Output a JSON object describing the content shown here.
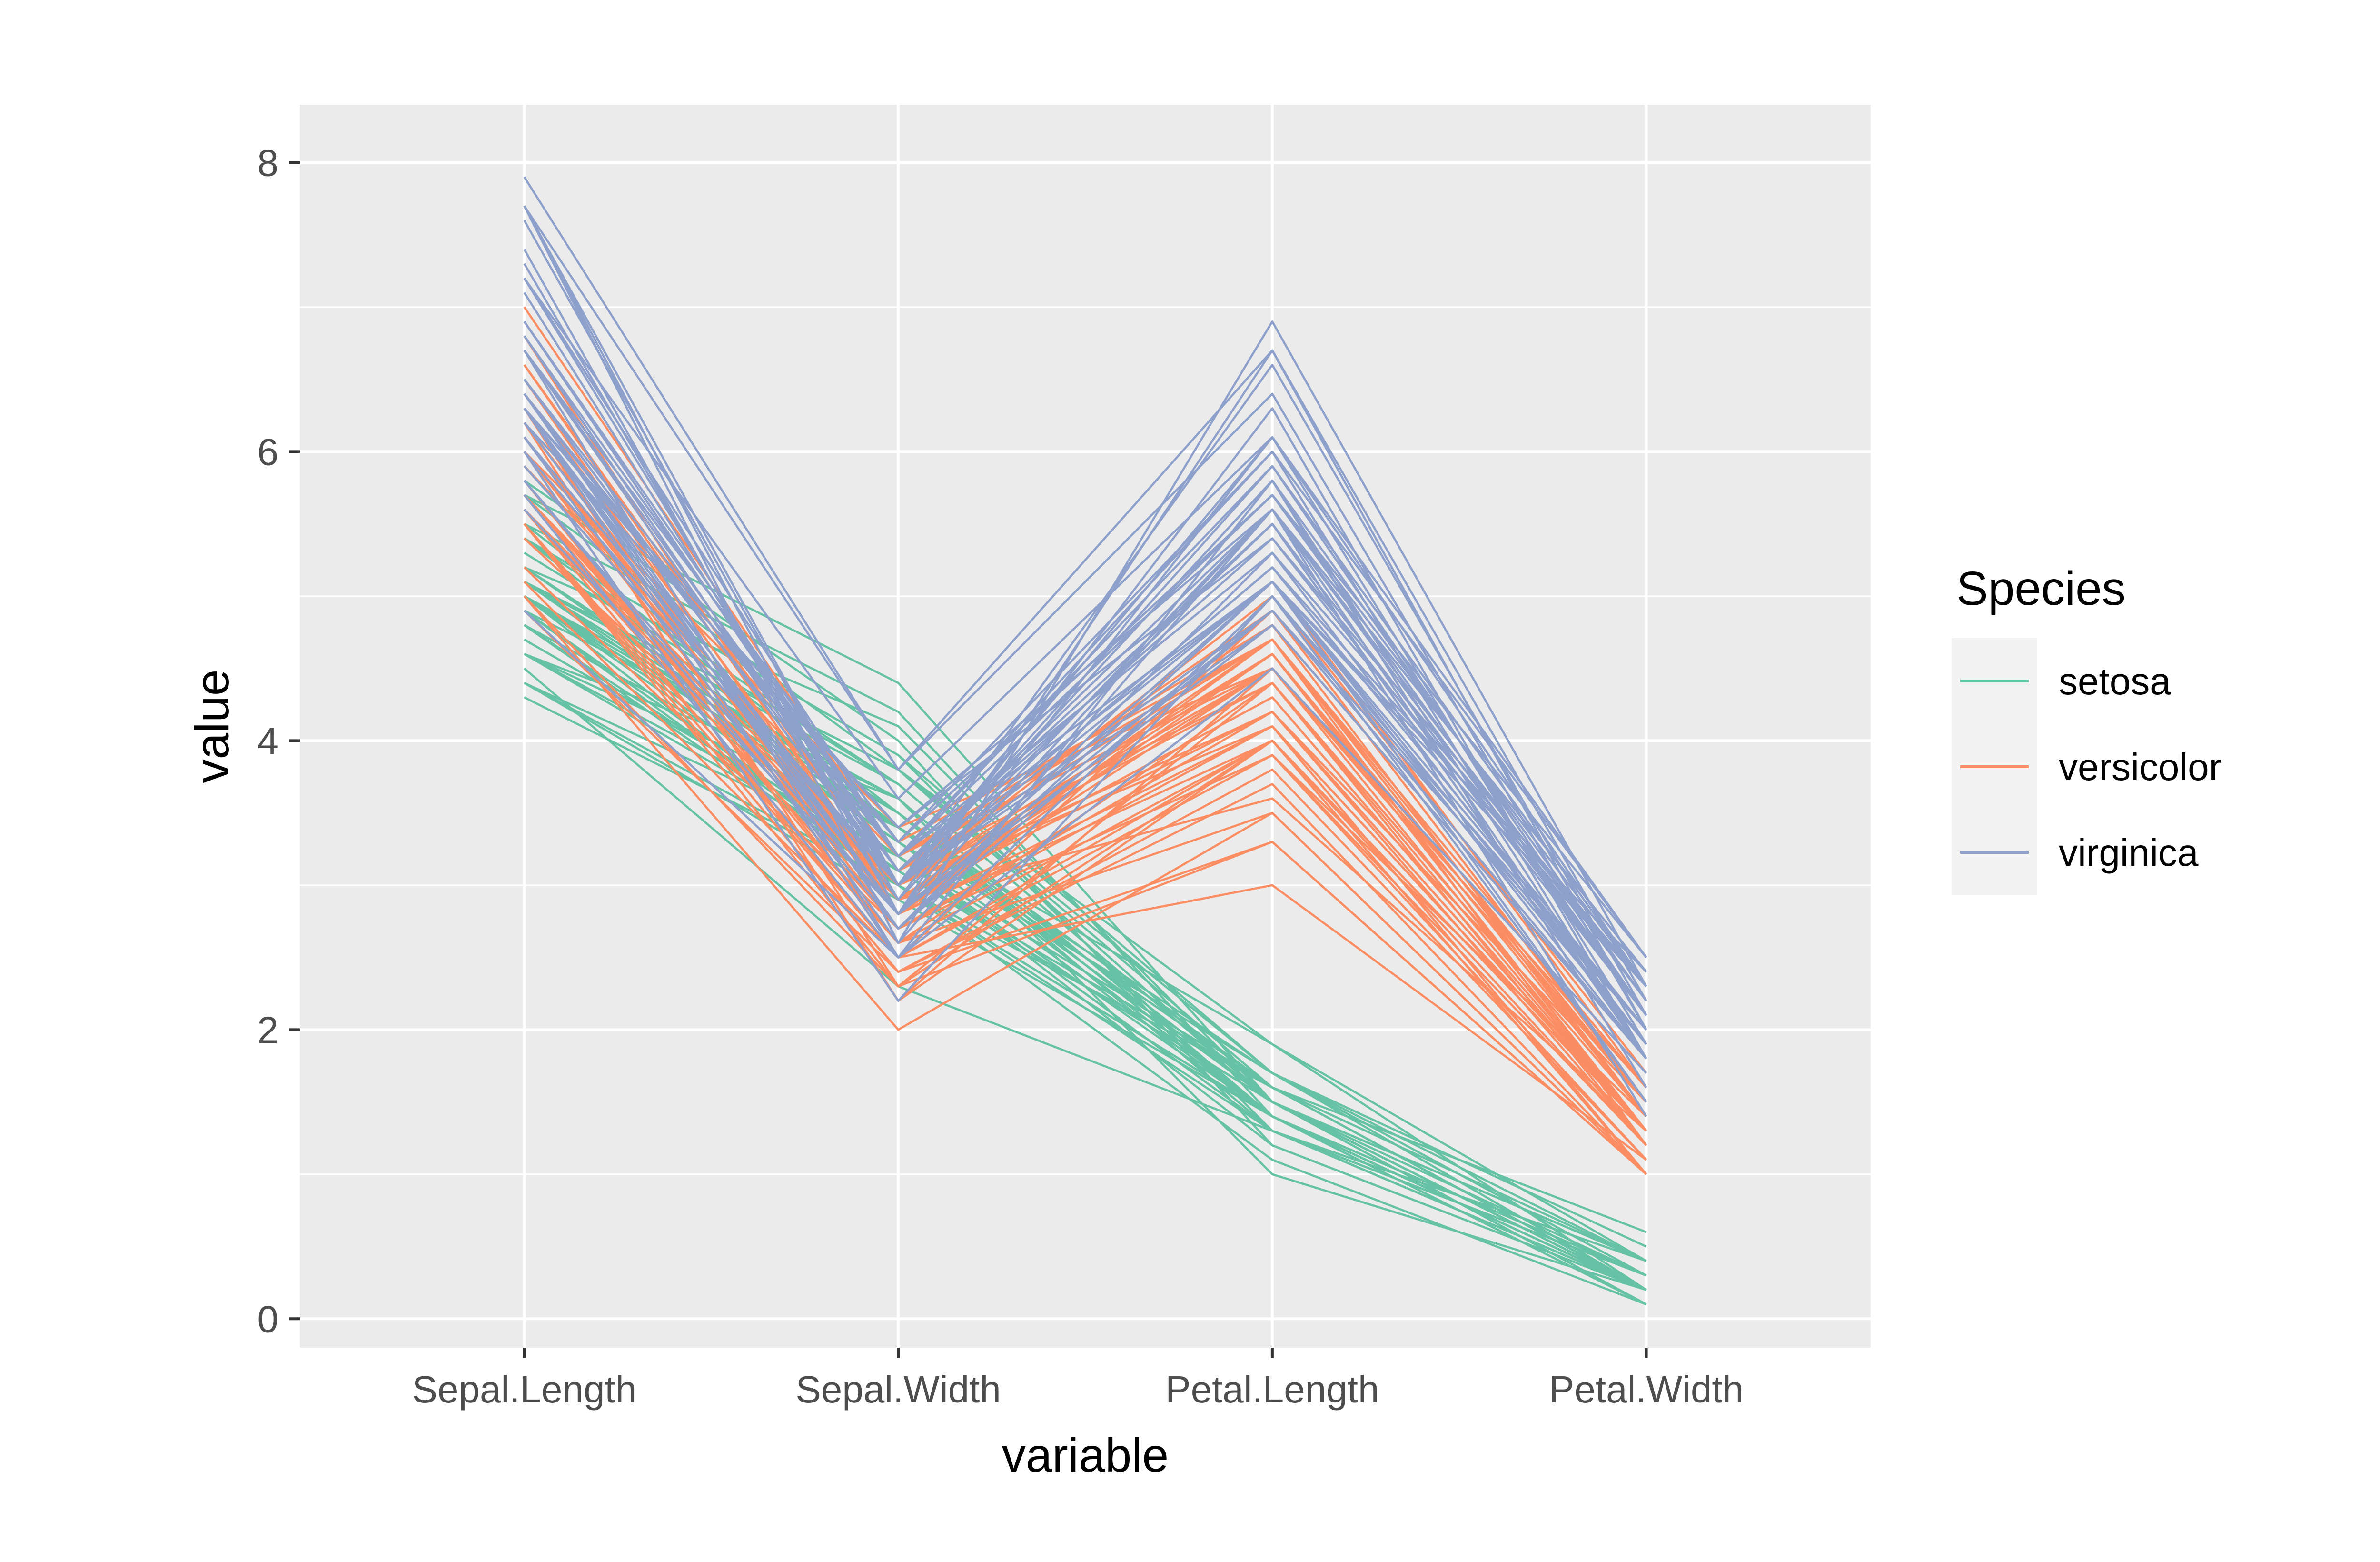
{
  "chart_data": {
    "type": "line",
    "title": "",
    "xlabel": "variable",
    "ylabel": "value",
    "categories": [
      "Sepal.Length",
      "Sepal.Width",
      "Petal.Length",
      "Petal.Width"
    ],
    "ylim": [
      -0.2,
      8.4
    ],
    "y_ticks": [
      0,
      2,
      4,
      6,
      8
    ],
    "grid": true,
    "legend": {
      "title": "Species",
      "position": "right"
    },
    "series_groups": [
      {
        "name": "setosa",
        "color": "#66C2A5",
        "lines": [
          [
            5.1,
            3.5,
            1.4,
            0.2
          ],
          [
            4.9,
            3.0,
            1.4,
            0.2
          ],
          [
            4.7,
            3.2,
            1.3,
            0.2
          ],
          [
            4.6,
            3.1,
            1.5,
            0.2
          ],
          [
            5.0,
            3.6,
            1.4,
            0.2
          ],
          [
            5.4,
            3.9,
            1.7,
            0.4
          ],
          [
            4.6,
            3.4,
            1.4,
            0.3
          ],
          [
            5.0,
            3.4,
            1.5,
            0.2
          ],
          [
            4.4,
            2.9,
            1.4,
            0.2
          ],
          [
            4.9,
            3.1,
            1.5,
            0.1
          ],
          [
            5.4,
            3.7,
            1.5,
            0.2
          ],
          [
            4.8,
            3.4,
            1.6,
            0.2
          ],
          [
            4.8,
            3.0,
            1.4,
            0.1
          ],
          [
            4.3,
            3.0,
            1.1,
            0.1
          ],
          [
            5.8,
            4.0,
            1.2,
            0.2
          ],
          [
            5.7,
            4.4,
            1.5,
            0.4
          ],
          [
            5.4,
            3.9,
            1.3,
            0.4
          ],
          [
            5.1,
            3.5,
            1.4,
            0.3
          ],
          [
            5.7,
            3.8,
            1.7,
            0.3
          ],
          [
            5.1,
            3.8,
            1.5,
            0.3
          ],
          [
            5.4,
            3.4,
            1.7,
            0.2
          ],
          [
            5.1,
            3.7,
            1.5,
            0.4
          ],
          [
            4.6,
            3.6,
            1.0,
            0.2
          ],
          [
            5.1,
            3.3,
            1.7,
            0.5
          ],
          [
            4.8,
            3.4,
            1.9,
            0.2
          ],
          [
            5.0,
            3.0,
            1.6,
            0.2
          ],
          [
            5.0,
            3.4,
            1.6,
            0.4
          ],
          [
            5.2,
            3.5,
            1.5,
            0.2
          ],
          [
            5.2,
            3.4,
            1.4,
            0.2
          ],
          [
            4.7,
            3.2,
            1.6,
            0.2
          ],
          [
            4.8,
            3.1,
            1.6,
            0.2
          ],
          [
            5.4,
            3.4,
            1.5,
            0.4
          ],
          [
            5.2,
            4.1,
            1.5,
            0.1
          ],
          [
            5.5,
            4.2,
            1.4,
            0.2
          ],
          [
            4.9,
            3.1,
            1.5,
            0.2
          ],
          [
            5.0,
            3.2,
            1.2,
            0.2
          ],
          [
            5.5,
            3.5,
            1.3,
            0.2
          ],
          [
            4.9,
            3.6,
            1.4,
            0.1
          ],
          [
            4.4,
            3.0,
            1.3,
            0.2
          ],
          [
            5.1,
            3.4,
            1.5,
            0.2
          ],
          [
            5.0,
            3.5,
            1.3,
            0.3
          ],
          [
            4.5,
            2.3,
            1.3,
            0.3
          ],
          [
            4.4,
            3.2,
            1.3,
            0.2
          ],
          [
            5.0,
            3.5,
            1.6,
            0.6
          ],
          [
            5.1,
            3.8,
            1.9,
            0.4
          ],
          [
            4.8,
            3.0,
            1.4,
            0.3
          ],
          [
            5.1,
            3.8,
            1.6,
            0.2
          ],
          [
            4.6,
            3.2,
            1.4,
            0.2
          ],
          [
            5.3,
            3.7,
            1.5,
            0.2
          ],
          [
            5.0,
            3.3,
            1.4,
            0.2
          ]
        ]
      },
      {
        "name": "versicolor",
        "color": "#FC8D62",
        "lines": [
          [
            7.0,
            3.2,
            4.7,
            1.4
          ],
          [
            6.4,
            3.2,
            4.5,
            1.5
          ],
          [
            6.9,
            3.1,
            4.9,
            1.5
          ],
          [
            5.5,
            2.3,
            4.0,
            1.3
          ],
          [
            6.5,
            2.8,
            4.6,
            1.5
          ],
          [
            5.7,
            2.8,
            4.5,
            1.3
          ],
          [
            6.3,
            3.3,
            4.7,
            1.6
          ],
          [
            4.9,
            2.4,
            3.3,
            1.0
          ],
          [
            6.6,
            2.9,
            4.6,
            1.3
          ],
          [
            5.2,
            2.7,
            3.9,
            1.4
          ],
          [
            5.0,
            2.0,
            3.5,
            1.0
          ],
          [
            5.9,
            3.0,
            4.2,
            1.5
          ],
          [
            6.0,
            2.2,
            4.0,
            1.0
          ],
          [
            6.1,
            2.9,
            4.7,
            1.4
          ],
          [
            5.6,
            2.9,
            3.6,
            1.3
          ],
          [
            6.7,
            3.1,
            4.4,
            1.4
          ],
          [
            5.6,
            3.0,
            4.5,
            1.5
          ],
          [
            5.8,
            2.7,
            4.1,
            1.0
          ],
          [
            6.2,
            2.2,
            4.5,
            1.5
          ],
          [
            5.6,
            2.5,
            3.9,
            1.1
          ],
          [
            5.9,
            3.2,
            4.8,
            1.8
          ],
          [
            6.1,
            2.8,
            4.0,
            1.3
          ],
          [
            6.3,
            2.5,
            4.9,
            1.5
          ],
          [
            6.1,
            2.8,
            4.7,
            1.2
          ],
          [
            6.4,
            2.9,
            4.3,
            1.3
          ],
          [
            6.6,
            3.0,
            4.4,
            1.4
          ],
          [
            6.8,
            2.8,
            4.8,
            1.4
          ],
          [
            6.7,
            3.0,
            5.0,
            1.7
          ],
          [
            6.0,
            2.9,
            4.5,
            1.5
          ],
          [
            5.7,
            2.6,
            3.5,
            1.0
          ],
          [
            5.5,
            2.4,
            3.8,
            1.1
          ],
          [
            5.5,
            2.4,
            3.7,
            1.0
          ],
          [
            5.8,
            2.7,
            3.9,
            1.2
          ],
          [
            6.0,
            2.7,
            5.1,
            1.6
          ],
          [
            5.4,
            3.0,
            4.5,
            1.5
          ],
          [
            6.0,
            3.4,
            4.5,
            1.6
          ],
          [
            6.7,
            3.1,
            4.7,
            1.5
          ],
          [
            6.3,
            2.3,
            4.4,
            1.3
          ],
          [
            5.6,
            3.0,
            4.1,
            1.3
          ],
          [
            5.5,
            2.5,
            4.0,
            1.3
          ],
          [
            5.5,
            2.6,
            4.4,
            1.2
          ],
          [
            6.1,
            3.0,
            4.6,
            1.4
          ],
          [
            5.8,
            2.6,
            4.0,
            1.2
          ],
          [
            5.0,
            2.3,
            3.3,
            1.0
          ],
          [
            5.6,
            2.7,
            4.2,
            1.3
          ],
          [
            5.7,
            3.0,
            4.2,
            1.2
          ],
          [
            5.7,
            2.9,
            4.2,
            1.3
          ],
          [
            6.2,
            2.9,
            4.3,
            1.3
          ],
          [
            5.1,
            2.5,
            3.0,
            1.1
          ],
          [
            5.7,
            2.8,
            4.1,
            1.3
          ]
        ]
      },
      {
        "name": "virginica",
        "color": "#8DA0CB",
        "lines": [
          [
            6.3,
            3.3,
            6.0,
            2.5
          ],
          [
            5.8,
            2.7,
            5.1,
            1.9
          ],
          [
            7.1,
            3.0,
            5.9,
            2.1
          ],
          [
            6.3,
            2.9,
            5.6,
            1.8
          ],
          [
            6.5,
            3.0,
            5.8,
            2.2
          ],
          [
            7.6,
            3.0,
            6.6,
            2.1
          ],
          [
            4.9,
            2.5,
            4.5,
            1.7
          ],
          [
            7.3,
            2.9,
            6.3,
            1.8
          ],
          [
            6.7,
            2.5,
            5.8,
            1.8
          ],
          [
            7.2,
            3.6,
            6.1,
            2.5
          ],
          [
            6.5,
            3.2,
            5.1,
            2.0
          ],
          [
            6.4,
            2.7,
            5.3,
            1.9
          ],
          [
            6.8,
            3.0,
            5.5,
            2.1
          ],
          [
            5.7,
            2.5,
            5.0,
            2.0
          ],
          [
            5.8,
            2.8,
            5.1,
            2.4
          ],
          [
            6.4,
            3.2,
            5.3,
            2.3
          ],
          [
            6.5,
            3.0,
            5.5,
            1.8
          ],
          [
            7.7,
            3.8,
            6.7,
            2.2
          ],
          [
            7.7,
            2.6,
            6.9,
            2.3
          ],
          [
            6.0,
            2.2,
            5.0,
            1.5
          ],
          [
            6.9,
            3.2,
            5.7,
            2.3
          ],
          [
            5.6,
            2.8,
            4.9,
            2.0
          ],
          [
            7.7,
            2.8,
            6.7,
            2.0
          ],
          [
            6.3,
            2.7,
            4.9,
            1.8
          ],
          [
            6.7,
            3.3,
            5.7,
            2.1
          ],
          [
            7.2,
            3.2,
            6.0,
            1.8
          ],
          [
            6.2,
            2.8,
            4.8,
            1.8
          ],
          [
            6.1,
            3.0,
            4.9,
            1.8
          ],
          [
            6.4,
            2.8,
            5.6,
            2.1
          ],
          [
            7.2,
            3.0,
            5.8,
            1.6
          ],
          [
            7.4,
            2.8,
            6.1,
            1.9
          ],
          [
            7.9,
            3.8,
            6.4,
            2.0
          ],
          [
            6.4,
            2.8,
            5.6,
            2.2
          ],
          [
            6.3,
            2.8,
            5.1,
            1.5
          ],
          [
            6.1,
            2.6,
            5.6,
            1.4
          ],
          [
            7.7,
            3.0,
            6.1,
            2.3
          ],
          [
            6.3,
            3.4,
            5.6,
            2.4
          ],
          [
            6.4,
            3.1,
            5.5,
            1.8
          ],
          [
            6.0,
            3.0,
            4.8,
            1.8
          ],
          [
            6.9,
            3.1,
            5.4,
            2.1
          ],
          [
            6.7,
            3.1,
            5.6,
            2.4
          ],
          [
            6.9,
            3.1,
            5.1,
            2.3
          ],
          [
            5.8,
            2.7,
            5.1,
            1.9
          ],
          [
            6.8,
            3.2,
            5.9,
            2.3
          ],
          [
            6.7,
            3.3,
            5.7,
            2.5
          ],
          [
            6.7,
            3.0,
            5.2,
            2.3
          ],
          [
            6.3,
            2.5,
            5.0,
            1.9
          ],
          [
            6.5,
            3.0,
            5.2,
            2.0
          ],
          [
            6.2,
            3.4,
            5.4,
            2.3
          ],
          [
            5.9,
            3.0,
            5.1,
            1.8
          ]
        ]
      }
    ]
  }
}
